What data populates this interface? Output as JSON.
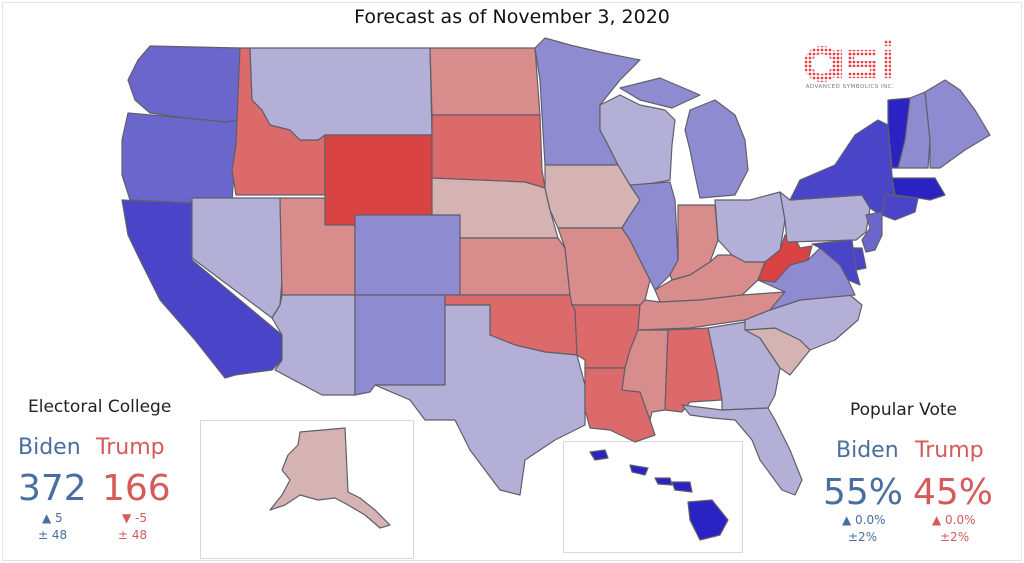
{
  "title": "Forecast as of November 3, 2020",
  "logo": {
    "mark": "asi",
    "tagline": "ADVANCED SYMBOLICS INC."
  },
  "electoral_college": {
    "heading": "Electoral College",
    "biden": {
      "name": "Biden",
      "value": "372",
      "change": "▲ 5",
      "margin": "± 48"
    },
    "trump": {
      "name": "Trump",
      "value": "166",
      "change": "▼ -5",
      "margin": "± 48"
    }
  },
  "popular_vote": {
    "heading": "Popular Vote",
    "biden": {
      "name": "Biden",
      "value": "55%",
      "change": "▲ 0.0%",
      "margin": "±2%"
    },
    "trump": {
      "name": "Trump",
      "value": "45%",
      "change": "▲ 0.0%",
      "margin": "±2%"
    }
  },
  "colors": {
    "strong_dem": "#4a44c9",
    "likely_dem": "#6a66cc",
    "lean_dem": "#8f8bd1",
    "tilt_dem": "#b3afd6",
    "tilt_rep": "#d6b3b3",
    "lean_rep": "#d98c8c",
    "likely_rep": "#dc6a6a",
    "strong_rep": "#d94343",
    "solid_dem": "#2b22c4"
  },
  "states": [
    {
      "name": "WA",
      "cat": "likely_dem"
    },
    {
      "name": "OR",
      "cat": "likely_dem"
    },
    {
      "name": "CA",
      "cat": "strong_dem"
    },
    {
      "name": "ID",
      "cat": "likely_rep"
    },
    {
      "name": "NV",
      "cat": "tilt_dem"
    },
    {
      "name": "MT",
      "cat": "tilt_dem"
    },
    {
      "name": "WY",
      "cat": "strong_rep"
    },
    {
      "name": "UT",
      "cat": "lean_rep"
    },
    {
      "name": "AZ",
      "cat": "tilt_dem"
    },
    {
      "name": "CO",
      "cat": "lean_dem"
    },
    {
      "name": "NM",
      "cat": "lean_dem"
    },
    {
      "name": "ND",
      "cat": "lean_rep"
    },
    {
      "name": "SD",
      "cat": "likely_rep"
    },
    {
      "name": "NE",
      "cat": "tilt_rep"
    },
    {
      "name": "KS",
      "cat": "lean_rep"
    },
    {
      "name": "OK",
      "cat": "likely_rep"
    },
    {
      "name": "TX",
      "cat": "tilt_dem"
    },
    {
      "name": "MN",
      "cat": "lean_dem"
    },
    {
      "name": "IA",
      "cat": "tilt_rep"
    },
    {
      "name": "MO",
      "cat": "lean_rep"
    },
    {
      "name": "AR",
      "cat": "likely_rep"
    },
    {
      "name": "LA",
      "cat": "likely_rep"
    },
    {
      "name": "WI",
      "cat": "tilt_dem"
    },
    {
      "name": "IL",
      "cat": "lean_dem"
    },
    {
      "name": "MI",
      "cat": "lean_dem"
    },
    {
      "name": "IN",
      "cat": "lean_rep"
    },
    {
      "name": "OH",
      "cat": "tilt_dem"
    },
    {
      "name": "KY",
      "cat": "lean_rep"
    },
    {
      "name": "TN",
      "cat": "lean_rep"
    },
    {
      "name": "MS",
      "cat": "lean_rep"
    },
    {
      "name": "AL",
      "cat": "likely_rep"
    },
    {
      "name": "GA",
      "cat": "tilt_dem"
    },
    {
      "name": "FL",
      "cat": "tilt_dem"
    },
    {
      "name": "SC",
      "cat": "tilt_rep"
    },
    {
      "name": "NC",
      "cat": "tilt_dem"
    },
    {
      "name": "VA",
      "cat": "lean_dem"
    },
    {
      "name": "WV",
      "cat": "strong_rep"
    },
    {
      "name": "PA",
      "cat": "tilt_dem"
    },
    {
      "name": "NY",
      "cat": "strong_dem"
    },
    {
      "name": "VT",
      "cat": "solid_dem"
    },
    {
      "name": "NH",
      "cat": "lean_dem"
    },
    {
      "name": "ME",
      "cat": "lean_dem"
    },
    {
      "name": "MA",
      "cat": "solid_dem"
    },
    {
      "name": "CT",
      "cat": "strong_dem"
    },
    {
      "name": "NJ",
      "cat": "likely_dem"
    },
    {
      "name": "DE",
      "cat": "strong_dem"
    },
    {
      "name": "MD",
      "cat": "strong_dem"
    },
    {
      "name": "AK",
      "cat": "tilt_rep"
    },
    {
      "name": "HI",
      "cat": "solid_dem"
    }
  ]
}
